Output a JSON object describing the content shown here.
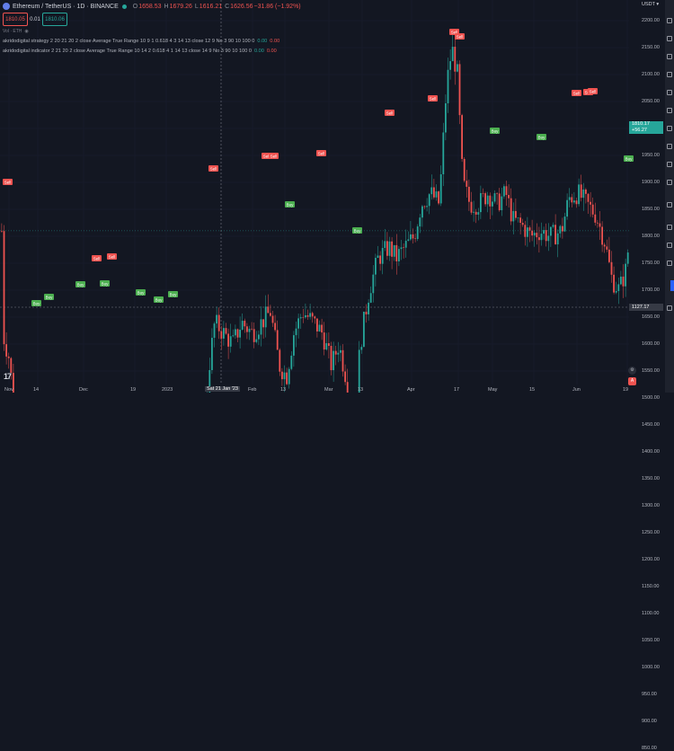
{
  "header": {
    "title": "Ethereum / TetherUS · 1D · BINANCE",
    "ohlc": [
      {
        "label": "O",
        "value": "1658.53"
      },
      {
        "label": "H",
        "value": "1679.26"
      },
      {
        "label": "L",
        "value": "1616.21"
      },
      {
        "label": "C",
        "value": "1626.56"
      },
      {
        "label": "",
        "value": "−31.86 (−1.92%)"
      }
    ]
  },
  "order_boxes": {
    "sell": "1810.05",
    "spread": "0.01",
    "buy": "1810.06"
  },
  "volume_label": "Vol · ETH",
  "indicators": [
    {
      "text": "akridodigital strategy 2 20 21 20 2 close Average True Range 10 9 1 0.618 4 3 14 13 close 12 9 No 3 90 10 100 0",
      "v1": "0.00",
      "v2": "0.00"
    },
    {
      "text": "akridodigital indicator 2 21 20 2 close Average True Range 10 14 2 0.618 4 1 14 13 close 14 9 No 3 90 10 100 0",
      "v1": "0.00",
      "v2": "0.00"
    }
  ],
  "price_axis": {
    "currency": "USDT",
    "ticks": [
      "2200.00",
      "2150.00",
      "2100.00",
      "2050.00",
      "2000.00",
      "1950.00",
      "1900.00",
      "1850.00",
      "1800.00",
      "1750.00",
      "1700.00",
      "1650.00",
      "1600.00",
      "1550.00",
      "1500.00",
      "1450.00",
      "1400.00",
      "1350.00",
      "1300.00",
      "1250.00",
      "1200.00",
      "1150.00",
      "1100.00",
      "1050.00",
      "1000.00",
      "950.00",
      "900.00",
      "850.00"
    ],
    "current_price": "1810.17",
    "current_change": "+56.27",
    "crosshair_price": "1127.17"
  },
  "time_axis": {
    "ticks": [
      "Nov",
      "14",
      "Dec",
      "19",
      "2023",
      "Feb",
      "13",
      "Mar",
      "13",
      "Apr",
      "17",
      "May",
      "15",
      "Jun",
      "19"
    ],
    "crosshair_label": "Sat 21 Jan '23"
  },
  "signals": {
    "sell": "Sell",
    "buy": "Buy"
  },
  "watermark": "17",
  "colors": {
    "up": "#26a69a",
    "down": "#ef5350",
    "background": "#131722",
    "sell_label": "#ef5350",
    "buy_label": "#4caf50"
  },
  "right_buttons": [
    "gear-icon",
    "auto-label"
  ],
  "right_button_labels": {
    "auto": "A"
  }
}
